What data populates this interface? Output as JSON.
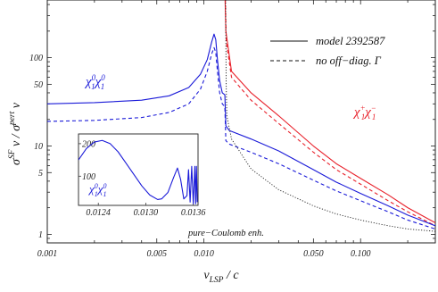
{
  "chart_data": {
    "type": "line",
    "x_axis": {
      "label_main": "v",
      "label_sub": "LSP",
      "label_tail": " / c",
      "scale": "log",
      "range": [
        0.001,
        0.3
      ],
      "tick_labels": [
        "0.001",
        "0.005",
        "0.010",
        "0.050",
        "0.100"
      ],
      "tick_values": [
        0.001,
        0.005,
        0.01,
        0.05,
        0.1
      ]
    },
    "y_axis": {
      "label_parts": [
        "σ",
        "SF",
        " v / σ",
        "pert",
        " v"
      ],
      "scale": "log",
      "range": [
        0.8,
        450
      ],
      "tick_labels": [
        "1",
        "5",
        "10",
        "50",
        "100"
      ],
      "tick_values": [
        1,
        5,
        10,
        50,
        100
      ]
    },
    "legend": {
      "placement": "top-right",
      "entries": [
        {
          "label": "model 2392587",
          "style": "solid"
        },
        {
          "label": "no off−diag. Γ",
          "style": "dashed"
        }
      ]
    },
    "annotations": {
      "neutral": {
        "base": "χ",
        "sup1": "0",
        "sub1": "1",
        "sup2": "0",
        "sub2": "1"
      },
      "chargino": {
        "base": "χ",
        "sup1": "+",
        "sub1": "1",
        "sup2": "−",
        "sub2": "1"
      },
      "coulomb": "pure−Coulomb enh."
    },
    "series": [
      {
        "label": "χ1+χ1− model 2392587",
        "color": "#e8202a",
        "style": "solid",
        "points": [
          [
            0.01365,
            450
          ],
          [
            0.0138,
            200
          ],
          [
            0.015,
            70
          ],
          [
            0.02,
            40
          ],
          [
            0.03,
            22
          ],
          [
            0.05,
            10
          ],
          [
            0.07,
            6.3
          ],
          [
            0.1,
            4.3
          ],
          [
            0.15,
            2.8
          ],
          [
            0.2,
            2.0
          ],
          [
            0.3,
            1.35
          ]
        ]
      },
      {
        "label": "χ1+χ1− no off-diag. Γ",
        "color": "#e8202a",
        "style": "dashed",
        "points": [
          [
            0.0137,
            450
          ],
          [
            0.0139,
            150
          ],
          [
            0.015,
            60
          ],
          [
            0.02,
            33
          ],
          [
            0.03,
            18
          ],
          [
            0.05,
            8.5
          ],
          [
            0.07,
            5.4
          ],
          [
            0.1,
            3.7
          ],
          [
            0.15,
            2.4
          ],
          [
            0.2,
            1.8
          ],
          [
            0.3,
            1.25
          ]
        ]
      },
      {
        "label": "χ1 0χ1 0 model 2392587",
        "color": "#1a1ad8",
        "style": "solid",
        "points": [
          [
            0.001,
            30
          ],
          [
            0.002,
            31
          ],
          [
            0.004,
            33
          ],
          [
            0.006,
            37
          ],
          [
            0.008,
            46
          ],
          [
            0.0095,
            65
          ],
          [
            0.0105,
            95
          ],
          [
            0.0112,
            150
          ],
          [
            0.0116,
            185
          ],
          [
            0.0119,
            160
          ],
          [
            0.0122,
            95
          ],
          [
            0.0126,
            55
          ],
          [
            0.0131,
            40
          ],
          [
            0.0136,
            38
          ],
          [
            0.0138,
            17
          ],
          [
            0.0145,
            15
          ],
          [
            0.02,
            12
          ],
          [
            0.03,
            8.8
          ],
          [
            0.05,
            5.4
          ],
          [
            0.07,
            3.9
          ],
          [
            0.1,
            2.9
          ],
          [
            0.15,
            2.1
          ],
          [
            0.2,
            1.65
          ],
          [
            0.3,
            1.25
          ]
        ]
      },
      {
        "label": "χ1 0χ1 0 no off-diag. Γ",
        "color": "#1a1ad8",
        "style": "dashed",
        "points": [
          [
            0.001,
            19
          ],
          [
            0.002,
            19.5
          ],
          [
            0.004,
            21
          ],
          [
            0.006,
            24
          ],
          [
            0.008,
            30
          ],
          [
            0.0095,
            44
          ],
          [
            0.0105,
            70
          ],
          [
            0.0112,
            110
          ],
          [
            0.0116,
            130
          ],
          [
            0.0119,
            115
          ],
          [
            0.0122,
            70
          ],
          [
            0.0126,
            40
          ],
          [
            0.0131,
            30
          ],
          [
            0.0136,
            28
          ],
          [
            0.0138,
            11.5
          ],
          [
            0.0145,
            10.5
          ],
          [
            0.02,
            8.5
          ],
          [
            0.03,
            6.3
          ],
          [
            0.05,
            4.1
          ],
          [
            0.07,
            3.1
          ],
          [
            0.1,
            2.4
          ],
          [
            0.15,
            1.8
          ],
          [
            0.2,
            1.45
          ],
          [
            0.3,
            1.15
          ]
        ]
      },
      {
        "label": "pure-Coulomb enhancement",
        "color": "#222222",
        "style": "dotted",
        "points": [
          [
            0.01375,
            450
          ],
          [
            0.01385,
            60
          ],
          [
            0.014,
            22
          ],
          [
            0.015,
            12
          ],
          [
            0.02,
            5.5
          ],
          [
            0.03,
            3.2
          ],
          [
            0.05,
            2.1
          ],
          [
            0.07,
            1.7
          ],
          [
            0.1,
            1.45
          ],
          [
            0.15,
            1.25
          ],
          [
            0.2,
            1.15
          ],
          [
            0.3,
            1.08
          ]
        ]
      }
    ],
    "inset": {
      "annotation": {
        "base": "χ",
        "sup1": "0",
        "sub1": "1",
        "sup2": "0",
        "sub2": "1"
      },
      "x_range": [
        0.01215,
        0.01366
      ],
      "y_range": [
        10,
        230
      ],
      "x_tick_labels": [
        "0.0124",
        "0.0130",
        "0.0136"
      ],
      "x_tick_values": [
        0.0124,
        0.013,
        0.0136
      ],
      "y_tick_labels": [
        "100",
        "200"
      ],
      "y_tick_values": [
        100,
        200
      ],
      "series": {
        "color": "#1a1ad8",
        "style": "solid",
        "points": [
          [
            0.01215,
            150
          ],
          [
            0.01225,
            185
          ],
          [
            0.01235,
            205
          ],
          [
            0.01245,
            210
          ],
          [
            0.01255,
            200
          ],
          [
            0.01265,
            175
          ],
          [
            0.01275,
            140
          ],
          [
            0.01285,
            105
          ],
          [
            0.01295,
            70
          ],
          [
            0.01305,
            42
          ],
          [
            0.01315,
            28
          ],
          [
            0.0132,
            30
          ],
          [
            0.01328,
            50
          ],
          [
            0.01335,
            95
          ],
          [
            0.0134,
            125
          ],
          [
            0.01344,
            90
          ],
          [
            0.01348,
            30
          ],
          [
            0.01352,
            40
          ],
          [
            0.01354,
            120
          ],
          [
            0.01356,
            20
          ],
          [
            0.01358,
            130
          ],
          [
            0.0136,
            15
          ],
          [
            0.01362,
            130
          ],
          [
            0.01363,
            15
          ],
          [
            0.01364,
            130
          ],
          [
            0.01365,
            20
          ]
        ]
      }
    }
  }
}
